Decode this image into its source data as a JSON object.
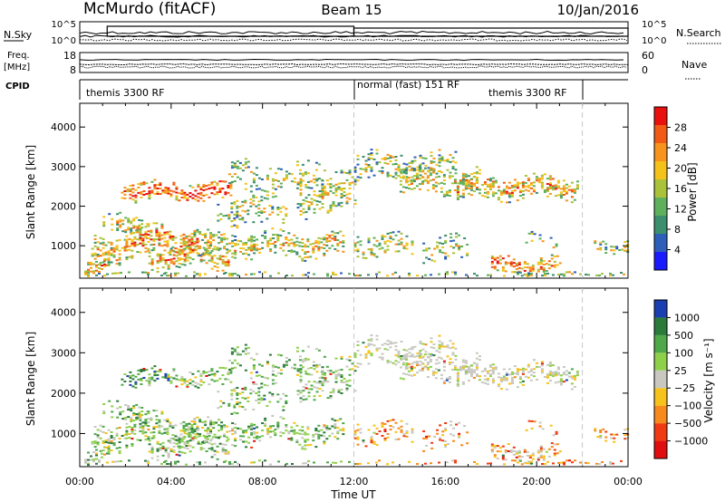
{
  "header": {
    "station": "McMurdo (fitACF)",
    "beam": "Beam 15",
    "date": "10/Jan/2016"
  },
  "strips": {
    "nsky_label": "N.Sky",
    "nsky_ticks": [
      "10^5",
      "10^0"
    ],
    "nsearch_label": "N.Search",
    "nsearch_ticks": [
      "10^5",
      "10^0"
    ],
    "freq_label_1": "Freq.",
    "freq_label_2": "[MHz]",
    "freq_ticks": [
      "18",
      "8"
    ],
    "nave_label": "Nave",
    "nave_ticks": [
      "60",
      "0"
    ],
    "cpid_label": "CPID",
    "cpid_segments": [
      {
        "name": "themis 3300 RF"
      },
      {
        "name": "normal (fast) 151 RF"
      },
      {
        "name": "themis 3300 RF"
      }
    ]
  },
  "chart_data": [
    {
      "type": "heatmap",
      "title": "",
      "xlabel": "Time UT",
      "ylabel": "Slant Range [km]",
      "x_ticks": [
        "00:00",
        "04:00",
        "08:00",
        "12:00",
        "16:00",
        "20:00",
        "00:00"
      ],
      "xlim_hours": [
        0,
        24
      ],
      "y_ticks": [
        1000,
        2000,
        3000,
        4000
      ],
      "ylim": [
        180,
        4600
      ],
      "colorbar_label": "Power [dB]",
      "colorbar_ticks": [
        "4",
        "8",
        "12",
        "16",
        "20",
        "24",
        "28"
      ],
      "color_scale": [
        "#1a1aff",
        "#2d5fb8",
        "#3b8f6e",
        "#5fb05c",
        "#a9c23a",
        "#f5c21a",
        "#f7941d",
        "#f25b16",
        "#e8110d"
      ]
    },
    {
      "type": "heatmap",
      "title": "",
      "xlabel": "Time UT",
      "ylabel": "Slant Range [km]",
      "x_ticks": [
        "00:00",
        "04:00",
        "08:00",
        "12:00",
        "16:00",
        "20:00",
        "00:00"
      ],
      "xlim_hours": [
        0,
        24
      ],
      "y_ticks": [
        1000,
        2000,
        3000,
        4000
      ],
      "ylim": [
        180,
        4600
      ],
      "colorbar_label": "Velocity [m s⁻¹]",
      "colorbar_ticks": [
        "1000",
        "500",
        "100",
        "25",
        "−25",
        "−100",
        "−500",
        "−1000"
      ],
      "color_scale": [
        "#1a3fb0",
        "#2a7a3a",
        "#4fa84a",
        "#8fd04a",
        "#c8c8c0",
        "#f7c21a",
        "#f78a1d",
        "#ef3a12",
        "#e00e0e"
      ]
    }
  ]
}
